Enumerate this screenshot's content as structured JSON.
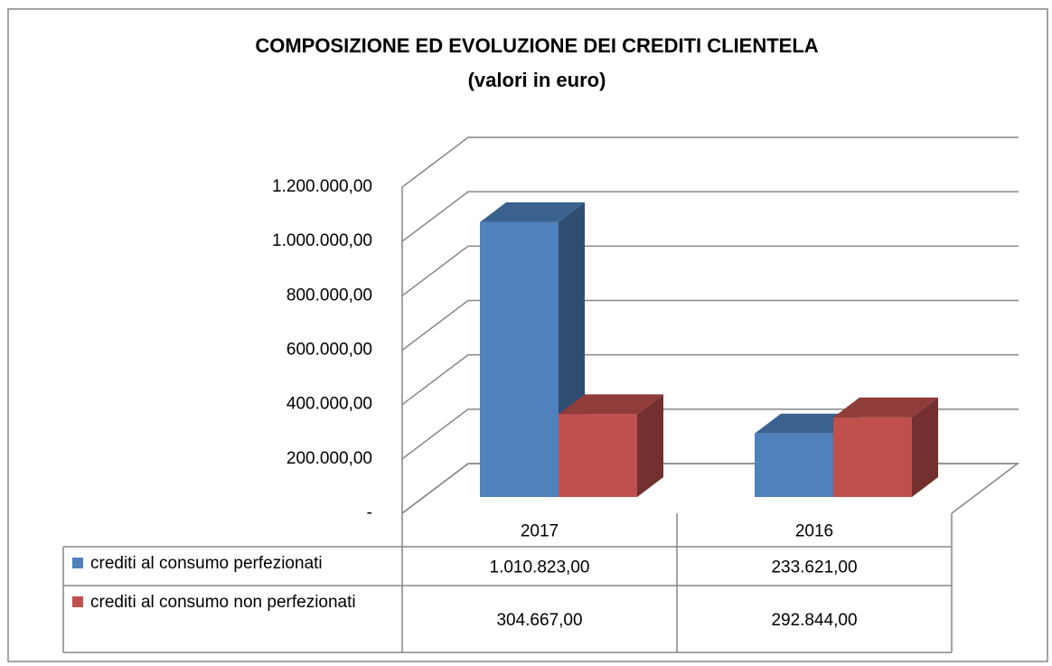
{
  "chart_data": {
    "type": "bar3d",
    "title": "COMPOSIZIONE ED EVOLUZIONE DEI CREDITI CLIENTELA",
    "subtitle": "(valori in euro)",
    "categories": [
      "2017",
      "2016"
    ],
    "series": [
      {
        "name": "crediti al consumo perfezionati",
        "color": "#4f81bd",
        "values": [
          1010823,
          233621
        ],
        "value_labels": [
          "1.010.823,00",
          "233.621,00"
        ]
      },
      {
        "name": "crediti al consumo non perfezionati",
        "color": "#c0504d",
        "values": [
          304667,
          292844
        ],
        "value_labels": [
          "304.667,00",
          "292.844,00"
        ]
      }
    ],
    "ylim": [
      0,
      1200000
    ],
    "yticks": [
      {
        "value": 0,
        "label": "-"
      },
      {
        "value": 200000,
        "label": "200.000,00"
      },
      {
        "value": 400000,
        "label": "400.000,00"
      },
      {
        "value": 600000,
        "label": "600.000,00"
      },
      {
        "value": 800000,
        "label": "800.000,00"
      },
      {
        "value": 1000000,
        "label": "1.000.000,00"
      },
      {
        "value": 1200000,
        "label": "1.200.000,00"
      }
    ],
    "grid": true
  }
}
